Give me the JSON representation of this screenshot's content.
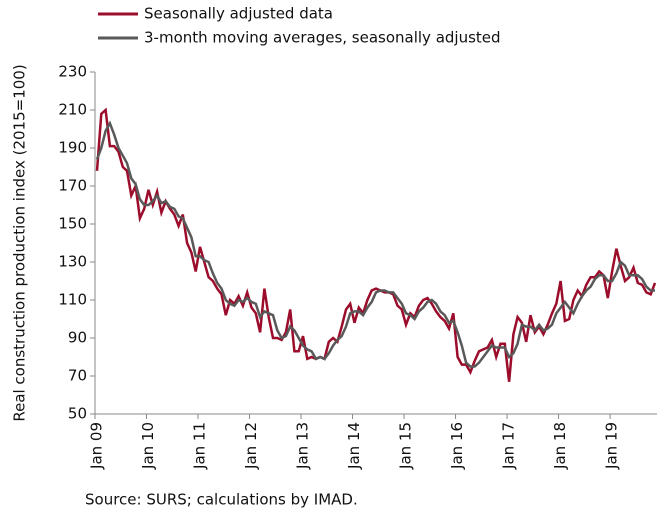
{
  "chart_data": {
    "type": "line",
    "legend": "top-left",
    "y_label": "Real construction production index (2015=100)",
    "source": "Source: SURS; calculations by IMAD.",
    "categories": [
      "Jan 09",
      null,
      null,
      null,
      null,
      null,
      null,
      null,
      null,
      null,
      null,
      null,
      "Jan 10",
      null,
      null,
      null,
      null,
      null,
      null,
      null,
      null,
      null,
      null,
      null,
      "Jan 11",
      null,
      null,
      null,
      null,
      null,
      null,
      null,
      null,
      null,
      null,
      null,
      "Jan 12",
      null,
      null,
      null,
      null,
      null,
      null,
      null,
      null,
      null,
      null,
      null,
      "Jan 13",
      null,
      null,
      null,
      null,
      null,
      null,
      null,
      null,
      null,
      null,
      null,
      "Jan 14",
      null,
      null,
      null,
      null,
      null,
      null,
      null,
      null,
      null,
      null,
      null,
      "Jan 15",
      null,
      null,
      null,
      null,
      null,
      null,
      null,
      null,
      null,
      null,
      null,
      "Jan 16",
      null,
      null,
      null,
      null,
      null,
      null,
      null,
      null,
      null,
      null,
      null,
      "Jan 17",
      null,
      null,
      null,
      null,
      null,
      null,
      null,
      null,
      null,
      null,
      null,
      "Jan 18",
      null,
      null,
      null,
      null,
      null,
      null,
      null,
      null,
      null,
      null,
      null,
      "Jan 19",
      null,
      null,
      null,
      null,
      null,
      null,
      null,
      null,
      null,
      null
    ],
    "series": [
      {
        "name": "Seasonally adjusted data",
        "color": "#9b0d2b",
        "values": [
          178,
          208,
          210,
          191,
          191,
          188,
          180,
          178,
          165,
          170,
          153,
          158,
          168,
          160,
          167,
          156,
          162,
          158,
          155,
          149,
          155,
          140,
          135,
          125,
          138,
          130,
          122,
          120,
          116,
          113,
          102,
          110,
          108,
          112,
          107,
          114,
          106,
          103,
          93,
          116,
          101,
          90,
          90,
          89,
          93,
          105,
          83,
          83,
          91,
          79,
          80,
          79,
          80,
          79,
          88,
          90,
          88,
          96,
          105,
          108,
          98,
          106,
          103,
          110,
          115,
          116,
          115,
          114,
          114,
          113,
          107,
          105,
          97,
          103,
          101,
          107,
          110,
          111,
          108,
          104,
          101,
          99,
          95,
          103,
          80,
          76,
          76,
          72,
          78,
          83,
          84,
          85,
          89,
          80,
          87,
          87,
          67,
          92,
          101,
          98,
          88,
          102,
          93,
          96,
          92,
          97,
          103,
          108,
          120,
          99,
          100,
          110,
          115,
          112,
          118,
          122,
          122,
          125,
          123,
          111,
          125,
          137,
          128,
          120,
          122,
          127,
          119,
          118,
          114,
          113,
          119
        ]
      },
      {
        "name": "3-month moving averages, seasonally adjusted",
        "color": "#595959",
        "values": [
          184,
          190,
          199,
          203,
          197,
          190,
          186,
          182,
          174,
          171,
          163,
          160,
          160,
          162,
          165,
          161,
          162,
          159,
          158,
          154,
          153,
          148,
          143,
          133,
          133,
          131,
          130,
          124,
          119,
          116,
          110,
          108,
          107,
          110,
          109,
          111,
          109,
          108,
          101,
          104,
          103,
          102,
          94,
          90,
          91,
          96,
          94,
          90,
          86,
          84,
          83,
          79,
          80,
          79,
          82,
          86,
          89,
          91,
          96,
          103,
          104,
          104,
          102,
          106,
          109,
          114,
          115,
          115,
          114,
          114,
          111,
          108,
          103,
          102,
          100,
          104,
          106,
          109,
          110,
          108,
          104,
          102,
          98,
          99,
          93,
          86,
          77,
          75,
          75,
          77,
          80,
          83,
          86,
          85,
          85,
          85,
          80,
          82,
          87,
          97,
          96,
          96,
          94,
          97,
          94,
          95,
          97,
          103,
          106,
          109,
          106,
          103,
          108,
          112,
          115,
          117,
          121,
          123,
          123,
          120,
          120,
          124,
          130,
          128,
          123,
          123,
          123,
          121,
          117,
          115,
          115
        ]
      }
    ],
    "ylim": [
      50,
      230
    ],
    "yticks": [
      50,
      70,
      90,
      110,
      130,
      150,
      170,
      190,
      210,
      230
    ]
  }
}
